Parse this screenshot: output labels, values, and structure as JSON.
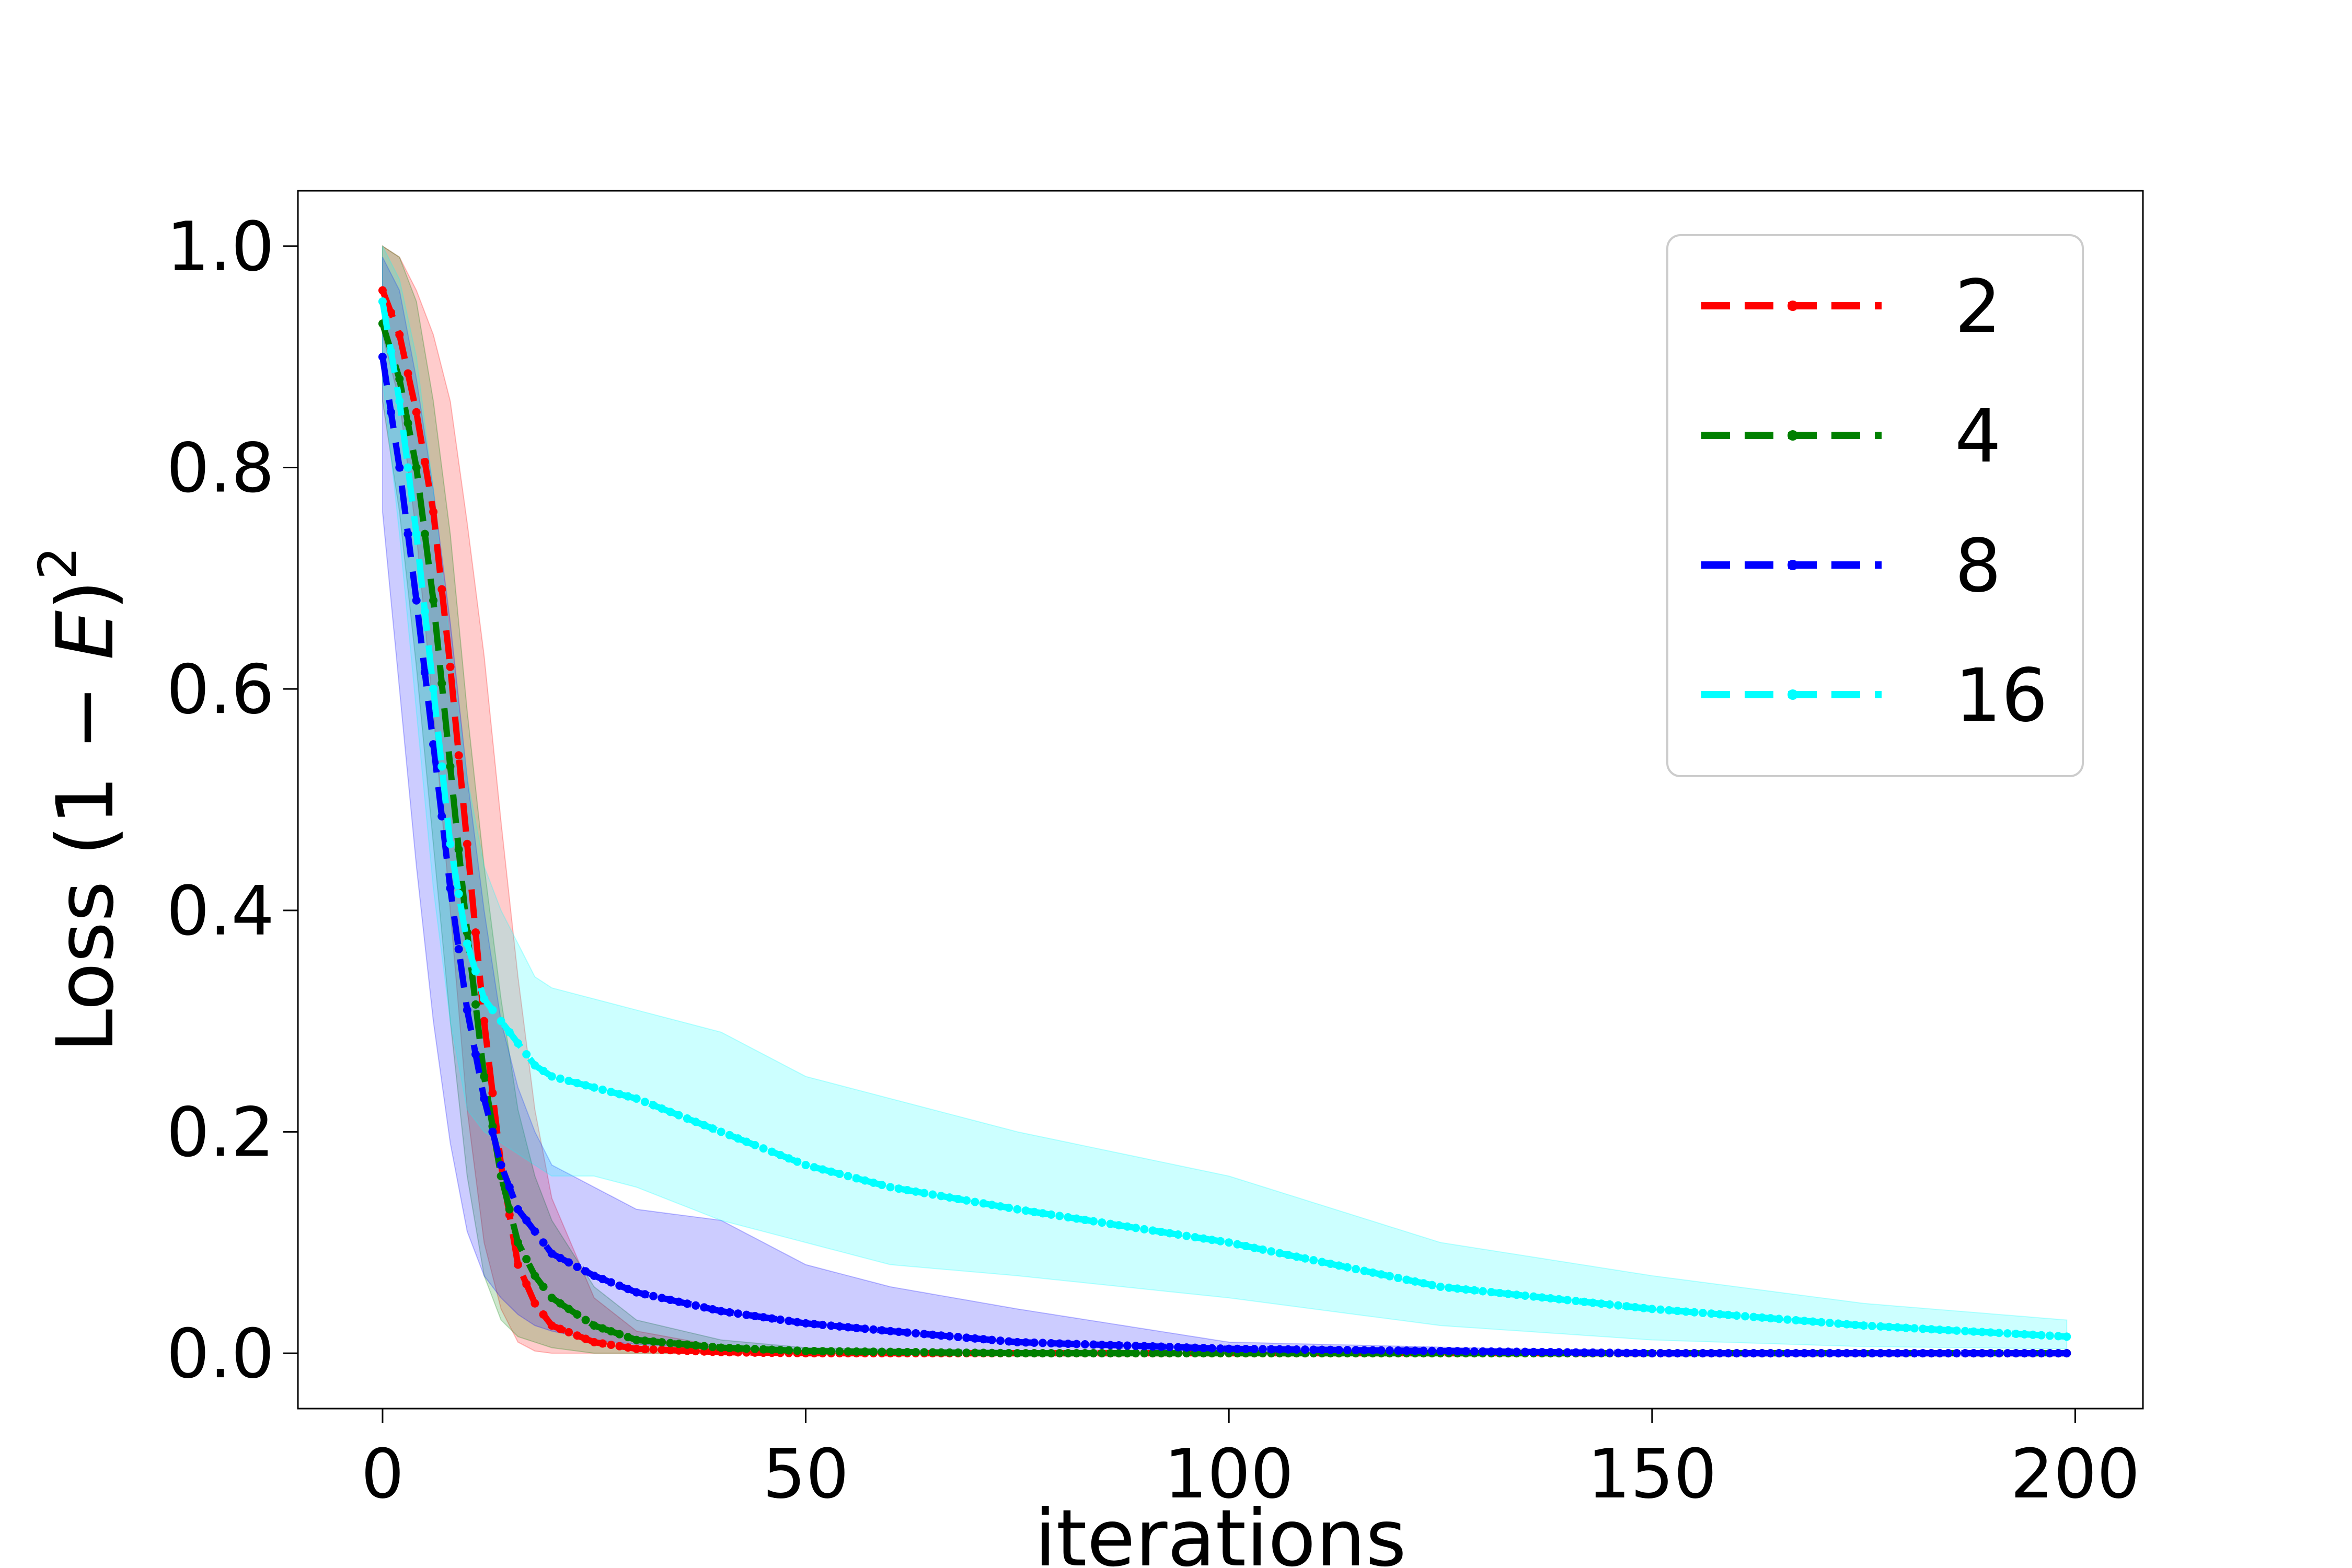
{
  "chart_data": {
    "type": "line",
    "xlabel": "iterations",
    "ylabel": "Loss (1 − E)²",
    "ylabel_parts": {
      "prefix": "Loss (1 − ",
      "var": "E",
      "suffix": ")",
      "sup": "2"
    },
    "xlim": [
      -10,
      208
    ],
    "ylim": [
      -0.05,
      1.05
    ],
    "xticks": [
      0,
      50,
      100,
      150,
      200
    ],
    "xtick_labels": [
      "0",
      "50",
      "100",
      "150",
      "200"
    ],
    "yticks": [
      0.0,
      0.2,
      0.4,
      0.6,
      0.8,
      1.0
    ],
    "ytick_labels": [
      "0.0",
      "0.2",
      "0.4",
      "0.6",
      "0.8",
      "1.0"
    ],
    "grid": false,
    "legend_position": "top-right",
    "line_style": "dashed with dot markers",
    "band": "shaded region around each curve",
    "series": [
      {
        "name": "2",
        "color": "#ff0000",
        "x": [
          0,
          2,
          4,
          6,
          8,
          10,
          12,
          14,
          16,
          18,
          20,
          25,
          30,
          40,
          50,
          75,
          100,
          150,
          199
        ],
        "y": [
          0.96,
          0.92,
          0.85,
          0.76,
          0.62,
          0.46,
          0.3,
          0.17,
          0.08,
          0.045,
          0.025,
          0.01,
          0.004,
          0.001,
          0.0,
          0.0,
          0.0,
          0.0,
          0.0
        ],
        "band_lower": [
          0.92,
          0.86,
          0.74,
          0.58,
          0.4,
          0.22,
          0.1,
          0.04,
          0.01,
          0.002,
          0.0,
          0.0,
          0.0,
          0.0,
          0.0,
          0.0,
          0.0,
          0.0,
          0.0
        ],
        "band_upper": [
          1.0,
          0.99,
          0.96,
          0.92,
          0.86,
          0.75,
          0.63,
          0.48,
          0.34,
          0.22,
          0.14,
          0.05,
          0.02,
          0.006,
          0.002,
          0.0,
          0.0,
          0.0,
          0.0
        ]
      },
      {
        "name": "4",
        "color": "#008000",
        "x": [
          0,
          2,
          4,
          6,
          8,
          10,
          12,
          14,
          16,
          18,
          20,
          25,
          30,
          40,
          50,
          75,
          100,
          150,
          199
        ],
        "y": [
          0.93,
          0.88,
          0.8,
          0.68,
          0.53,
          0.38,
          0.25,
          0.16,
          0.1,
          0.07,
          0.05,
          0.025,
          0.012,
          0.005,
          0.002,
          0.0,
          0.0,
          0.0,
          0.0
        ],
        "band_lower": [
          0.86,
          0.76,
          0.62,
          0.46,
          0.3,
          0.16,
          0.07,
          0.03,
          0.015,
          0.01,
          0.005,
          0.0,
          0.0,
          0.0,
          0.0,
          0.0,
          0.0,
          0.0,
          0.0
        ],
        "band_upper": [
          1.0,
          0.99,
          0.95,
          0.86,
          0.74,
          0.58,
          0.44,
          0.32,
          0.22,
          0.16,
          0.12,
          0.06,
          0.03,
          0.012,
          0.005,
          0.001,
          0.0,
          0.0,
          0.0
        ]
      },
      {
        "name": "8",
        "color": "#0000ff",
        "x": [
          0,
          2,
          4,
          6,
          8,
          10,
          12,
          14,
          16,
          18,
          20,
          25,
          30,
          40,
          50,
          60,
          75,
          100,
          150,
          199
        ],
        "y": [
          0.9,
          0.8,
          0.68,
          0.55,
          0.42,
          0.31,
          0.23,
          0.17,
          0.13,
          0.11,
          0.09,
          0.07,
          0.055,
          0.038,
          0.027,
          0.02,
          0.01,
          0.004,
          0.0,
          0.0
        ],
        "band_lower": [
          0.76,
          0.6,
          0.44,
          0.3,
          0.19,
          0.11,
          0.07,
          0.05,
          0.035,
          0.025,
          0.02,
          0.012,
          0.008,
          0.004,
          0.002,
          0.001,
          0.0,
          0.0,
          0.0,
          0.0
        ],
        "band_upper": [
          0.99,
          0.96,
          0.88,
          0.78,
          0.66,
          0.52,
          0.4,
          0.3,
          0.24,
          0.2,
          0.17,
          0.15,
          0.13,
          0.12,
          0.08,
          0.06,
          0.04,
          0.01,
          0.001,
          0.0
        ]
      },
      {
        "name": "16",
        "color": "#00ffff",
        "x": [
          0,
          2,
          4,
          6,
          8,
          10,
          12,
          14,
          16,
          18,
          20,
          25,
          30,
          40,
          50,
          60,
          75,
          100,
          125,
          150,
          175,
          199
        ],
        "y": [
          0.95,
          0.86,
          0.74,
          0.6,
          0.46,
          0.37,
          0.32,
          0.3,
          0.28,
          0.26,
          0.25,
          0.24,
          0.23,
          0.2,
          0.17,
          0.15,
          0.13,
          0.1,
          0.06,
          0.04,
          0.025,
          0.015
        ],
        "band_lower": [
          0.88,
          0.74,
          0.58,
          0.42,
          0.3,
          0.22,
          0.2,
          0.19,
          0.18,
          0.17,
          0.16,
          0.16,
          0.15,
          0.12,
          0.1,
          0.08,
          0.07,
          0.05,
          0.025,
          0.012,
          0.006,
          0.004
        ],
        "band_upper": [
          1.0,
          0.97,
          0.9,
          0.78,
          0.64,
          0.52,
          0.44,
          0.4,
          0.37,
          0.34,
          0.33,
          0.32,
          0.31,
          0.29,
          0.25,
          0.23,
          0.2,
          0.16,
          0.1,
          0.07,
          0.045,
          0.03
        ]
      }
    ]
  }
}
